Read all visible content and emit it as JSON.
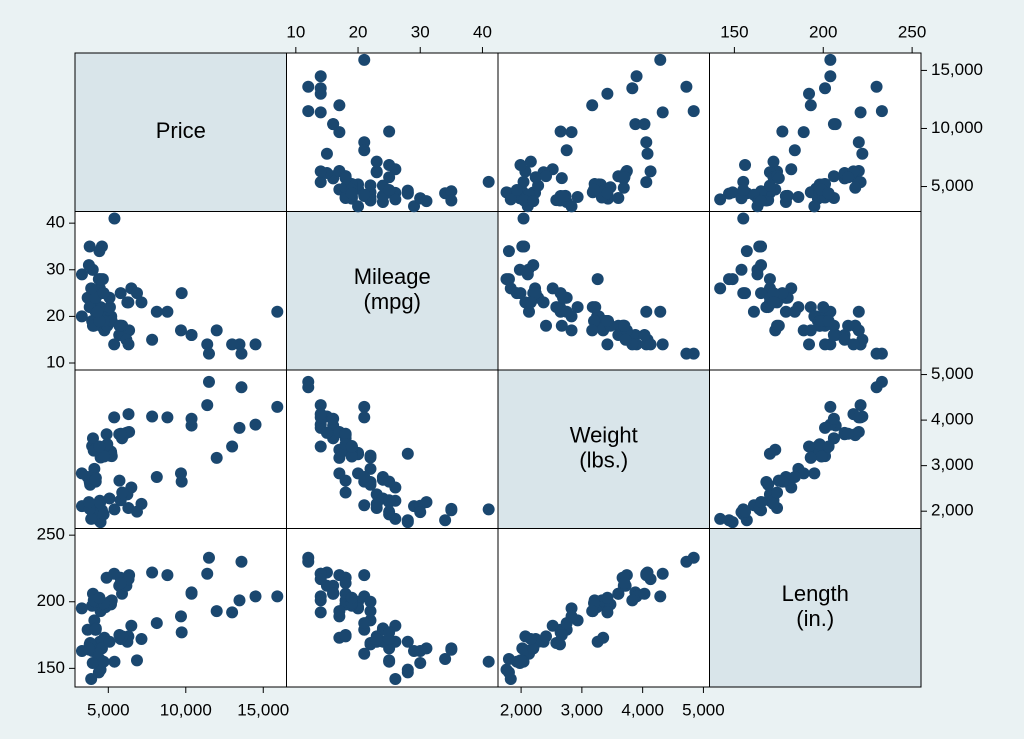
{
  "chart_data": {
    "type": "scatter_matrix",
    "point_color": "#1a476f",
    "diagonal_color": "#d9e5ea",
    "variables": [
      {
        "label": [
          "Price"
        ],
        "x_axis_side": "bottom",
        "y_axis_side": "right",
        "lim": [
          2850,
          16500
        ],
        "ticks": [
          {
            "value": 5000,
            "label": "5,000"
          },
          {
            "value": 10000,
            "label": "10,000"
          },
          {
            "value": 15000,
            "label": "15,000"
          }
        ],
        "values": [
          4099,
          4749,
          3799,
          4816,
          7827,
          5788,
          4453,
          5189,
          10372,
          4082,
          11385,
          14500,
          15906,
          3299,
          5705,
          4504,
          5104,
          3667,
          3955,
          3984,
          4010,
          5886,
          6342,
          4389,
          4187,
          11497,
          13594,
          13466,
          3829,
          5379,
          6165,
          4516,
          6303,
          3291,
          8814,
          5172,
          4733,
          4890,
          4181,
          4195,
          10371,
          4647,
          4425,
          4482,
          6486,
          4060,
          5798,
          4934,
          5222,
          4723,
          4424,
          4172,
          9690,
          6295,
          9735,
          6229,
          4589,
          5079,
          8129,
          4296,
          5799,
          4499,
          3995,
          12990,
          3895,
          3798,
          5899,
          3748,
          5719,
          7140,
          5397,
          4697,
          6850,
          11995
        ]
      },
      {
        "label": [
          "Mileage",
          "(mpg)"
        ],
        "x_axis_side": "top",
        "y_axis_side": "left",
        "lim": [
          8.5,
          42.5
        ],
        "ticks": [
          10,
          20,
          30,
          40
        ],
        "values": [
          22,
          17,
          22,
          20,
          15,
          18,
          26,
          20,
          16,
          19,
          14,
          14,
          21,
          29,
          16,
          22,
          22,
          24,
          19,
          30,
          18,
          16,
          17,
          28,
          21,
          12,
          12,
          14,
          22,
          14,
          15,
          18,
          14,
          20,
          21,
          19,
          19,
          18,
          19,
          24,
          16,
          28,
          34,
          25,
          26,
          18,
          18,
          18,
          19,
          19,
          19,
          24,
          17,
          23,
          25,
          23,
          35,
          24,
          21,
          21,
          25,
          28,
          30,
          14,
          26,
          35,
          18,
          31,
          18,
          23,
          41,
          25,
          25,
          17
        ]
      },
      {
        "label": [
          "Weight",
          "(lbs.)"
        ],
        "x_axis_side": "bottom",
        "y_axis_side": "right",
        "lim": [
          1620,
          5100
        ],
        "ticks": [
          {
            "value": 2000,
            "label": "2,000"
          },
          {
            "value": 3000,
            "label": "3,000"
          },
          {
            "value": 4000,
            "label": "4,000"
          },
          {
            "value": 5000,
            "label": "5,000"
          }
        ],
        "values": [
          2930,
          3350,
          2640,
          3250,
          4080,
          3670,
          2230,
          3280,
          3880,
          3400,
          4330,
          3900,
          4290,
          2110,
          3690,
          3180,
          3220,
          2750,
          3430,
          2120,
          3600,
          3600,
          3740,
          1800,
          2650,
          4840,
          4720,
          3830,
          2580,
          4060,
          3720,
          3370,
          4130,
          2830,
          4060,
          3310,
          3300,
          3690,
          3370,
          2730,
          4030,
          3260,
          1800,
          2200,
          2520,
          3330,
          3700,
          3470,
          3210,
          3200,
          3420,
          2690,
          2830,
          2070,
          2650,
          2370,
          2020,
          2280,
          2750,
          2130,
          2240,
          1760,
          1980,
          3420,
          1830,
          2050,
          2410,
          2200,
          2670,
          2160,
          2040,
          1930,
          1990,
          3170
        ]
      },
      {
        "label": [
          "Length",
          "(in.)"
        ],
        "x_axis_side": "top",
        "y_axis_side": "left",
        "lim": [
          136,
          255
        ],
        "ticks": [
          150,
          200,
          250
        ],
        "values": [
          186,
          173,
          168,
          196,
          222,
          218,
          170,
          200,
          207,
          200,
          221,
          204,
          204,
          163,
          212,
          193,
          200,
          179,
          197,
          163,
          206,
          206,
          220,
          147,
          179,
          233,
          230,
          201,
          169,
          221,
          212,
          198,
          217,
          195,
          220,
          198,
          198,
          218,
          200,
          180,
          206,
          170,
          157,
          165,
          182,
          201,
          214,
          198,
          201,
          199,
          203,
          179,
          189,
          174,
          177,
          170,
          165,
          170,
          184,
          161,
          172,
          149,
          154,
          192,
          142,
          164,
          174,
          165,
          175,
          172,
          155,
          155,
          156,
          193
        ]
      }
    ]
  }
}
